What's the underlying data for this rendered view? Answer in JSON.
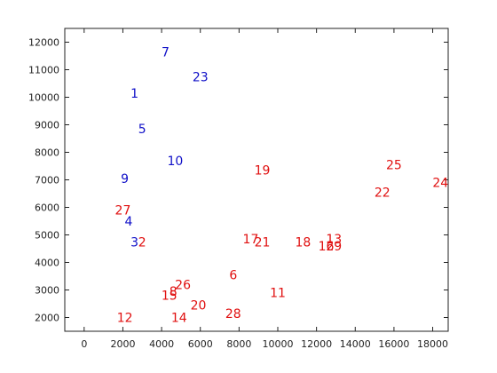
{
  "chart_data": {
    "type": "scatter",
    "title": "",
    "xlabel": "",
    "ylabel": "",
    "xlim": [
      -1000,
      18800
    ],
    "ylim": [
      1500,
      12500
    ],
    "xticks": [
      0,
      2000,
      4000,
      6000,
      8000,
      10000,
      12000,
      14000,
      16000,
      18000
    ],
    "yticks": [
      2000,
      3000,
      4000,
      5000,
      6000,
      7000,
      8000,
      9000,
      10000,
      11000,
      12000
    ],
    "grid": false,
    "box": true,
    "colors": {
      "blue": "#1010c8",
      "red": "#e01010"
    },
    "points": [
      {
        "label": "1",
        "x": 2600,
        "y": 10150,
        "color": "blue"
      },
      {
        "label": "2",
        "x": 3000,
        "y": 4750,
        "color": "red"
      },
      {
        "label": "3",
        "x": 2600,
        "y": 4750,
        "color": "blue"
      },
      {
        "label": "4",
        "x": 2300,
        "y": 5500,
        "color": "blue"
      },
      {
        "label": "5",
        "x": 3000,
        "y": 8850,
        "color": "blue"
      },
      {
        "label": "6",
        "x": 7700,
        "y": 3550,
        "color": "red"
      },
      {
        "label": "7",
        "x": 4200,
        "y": 11650,
        "color": "blue"
      },
      {
        "label": "8",
        "x": 4600,
        "y": 2950,
        "color": "red"
      },
      {
        "label": "9",
        "x": 2100,
        "y": 7050,
        "color": "blue"
      },
      {
        "label": "10",
        "x": 4700,
        "y": 7700,
        "color": "blue"
      },
      {
        "label": "11",
        "x": 10000,
        "y": 2900,
        "color": "red"
      },
      {
        "label": "12",
        "x": 2100,
        "y": 2000,
        "color": "red"
      },
      {
        "label": "13",
        "x": 12900,
        "y": 4850,
        "color": "red"
      },
      {
        "label": "14",
        "x": 4900,
        "y": 2000,
        "color": "red"
      },
      {
        "label": "15",
        "x": 4400,
        "y": 2800,
        "color": "red"
      },
      {
        "label": "16",
        "x": 12500,
        "y": 4600,
        "color": "red"
      },
      {
        "label": "17",
        "x": 8600,
        "y": 4850,
        "color": "red"
      },
      {
        "label": "18",
        "x": 11300,
        "y": 4750,
        "color": "red"
      },
      {
        "label": "19",
        "x": 9200,
        "y": 7350,
        "color": "red"
      },
      {
        "label": "20",
        "x": 5900,
        "y": 2450,
        "color": "red"
      },
      {
        "label": "21",
        "x": 9200,
        "y": 4750,
        "color": "red"
      },
      {
        "label": "22",
        "x": 15400,
        "y": 6550,
        "color": "red"
      },
      {
        "label": "23",
        "x": 6000,
        "y": 10750,
        "color": "blue"
      },
      {
        "label": "24",
        "x": 18400,
        "y": 6900,
        "color": "red"
      },
      {
        "label": "25",
        "x": 16000,
        "y": 7550,
        "color": "red"
      },
      {
        "label": "26",
        "x": 5100,
        "y": 3200,
        "color": "red"
      },
      {
        "label": "27",
        "x": 2000,
        "y": 5900,
        "color": "red"
      },
      {
        "label": "28",
        "x": 7700,
        "y": 2150,
        "color": "red"
      },
      {
        "label": "29",
        "x": 12900,
        "y": 4600,
        "color": "red"
      }
    ]
  }
}
